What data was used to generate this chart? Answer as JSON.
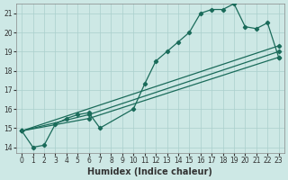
{
  "xlabel": "Humidex (Indice chaleur)",
  "bg_color": "#cde8e5",
  "grid_color": "#aacfcc",
  "line_color": "#1a6b5a",
  "xlim": [
    -0.5,
    23.5
  ],
  "ylim": [
    13.7,
    21.5
  ],
  "xticks": [
    0,
    1,
    2,
    3,
    4,
    5,
    6,
    7,
    8,
    9,
    10,
    11,
    12,
    13,
    14,
    15,
    16,
    17,
    18,
    19,
    20,
    21,
    22,
    23
  ],
  "yticks": [
    14,
    15,
    16,
    17,
    18,
    19,
    20,
    21
  ],
  "line1_x": [
    0,
    1,
    2,
    3,
    4,
    5,
    6,
    7,
    10,
    11,
    12,
    13,
    14,
    15,
    16,
    17,
    18,
    19,
    20,
    21,
    22,
    23
  ],
  "line1_y": [
    14.85,
    14.0,
    14.1,
    15.2,
    15.5,
    15.7,
    15.8,
    15.0,
    16.0,
    17.3,
    18.5,
    19.0,
    19.5,
    20.0,
    21.0,
    21.2,
    21.2,
    21.5,
    20.3,
    20.2,
    20.5,
    18.7
  ],
  "line2_x": [
    0,
    6,
    23
  ],
  "line2_y": [
    14.85,
    15.5,
    18.7
  ],
  "line3_x": [
    0,
    6,
    23
  ],
  "line3_y": [
    14.85,
    15.7,
    19.0
  ],
  "line4_x": [
    0,
    23
  ],
  "line4_y": [
    14.85,
    19.3
  ],
  "marker": "D",
  "markersize": 2.2,
  "linewidth": 0.9,
  "xlabel_fontsize": 7,
  "tick_fontsize": 5.5
}
